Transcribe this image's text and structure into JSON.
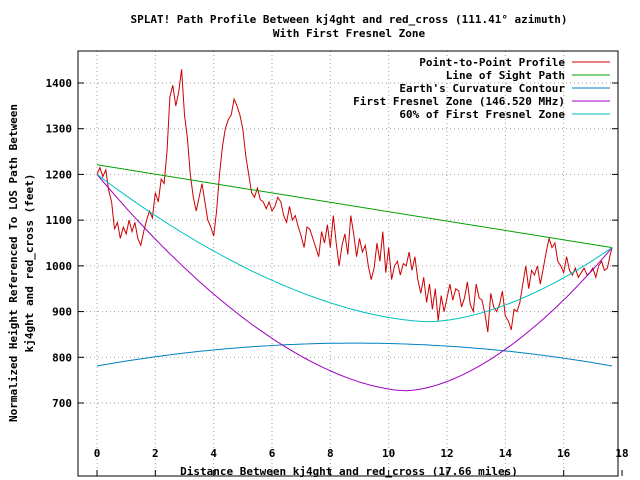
{
  "chart_data": {
    "type": "line",
    "title_line1": "SPLAT! Path Profile Between kj4ght and red_cross (111.41° azimuth)",
    "title_line2": "With First Fresnel Zone",
    "xlabel": "Distance Between kj4ght and red_cross (17.66 miles)",
    "ylabel_line1": "Normalized Height Referenced To LOS Path Between",
    "ylabel_line2": "kj4ght and red_cross (feet)",
    "xlim": [
      -1,
      18
    ],
    "ylim": [
      620,
      1480
    ],
    "x_ticks": [
      0,
      2,
      4,
      6,
      8,
      10,
      12,
      14,
      16,
      18
    ],
    "y_ticks": [
      700,
      800,
      900,
      1000,
      1100,
      1200,
      1300,
      1400
    ],
    "grid": true,
    "legend_position": "top-right",
    "series": [
      {
        "name": "Point-to-Point Profile",
        "color": "#cc0000",
        "points": [
          [
            0.0,
            1200
          ],
          [
            0.1,
            1215
          ],
          [
            0.2,
            1195
          ],
          [
            0.3,
            1210
          ],
          [
            0.4,
            1165
          ],
          [
            0.5,
            1140
          ],
          [
            0.6,
            1080
          ],
          [
            0.7,
            1095
          ],
          [
            0.8,
            1060
          ],
          [
            0.9,
            1085
          ],
          [
            1.0,
            1070
          ],
          [
            1.1,
            1100
          ],
          [
            1.2,
            1075
          ],
          [
            1.3,
            1095
          ],
          [
            1.4,
            1060
          ],
          [
            1.5,
            1045
          ],
          [
            1.6,
            1075
          ],
          [
            1.7,
            1100
          ],
          [
            1.8,
            1120
          ],
          [
            1.9,
            1105
          ],
          [
            2.0,
            1160
          ],
          [
            2.1,
            1140
          ],
          [
            2.2,
            1190
          ],
          [
            2.3,
            1180
          ],
          [
            2.4,
            1250
          ],
          [
            2.5,
            1370
          ],
          [
            2.6,
            1395
          ],
          [
            2.7,
            1350
          ],
          [
            2.8,
            1380
          ],
          [
            2.9,
            1430
          ],
          [
            3.0,
            1330
          ],
          [
            3.1,
            1280
          ],
          [
            3.2,
            1200
          ],
          [
            3.3,
            1150
          ],
          [
            3.4,
            1120
          ],
          [
            3.5,
            1150
          ],
          [
            3.6,
            1180
          ],
          [
            3.7,
            1140
          ],
          [
            3.8,
            1100
          ],
          [
            3.9,
            1085
          ],
          [
            4.0,
            1065
          ],
          [
            4.1,
            1120
          ],
          [
            4.2,
            1200
          ],
          [
            4.3,
            1260
          ],
          [
            4.4,
            1300
          ],
          [
            4.5,
            1320
          ],
          [
            4.6,
            1330
          ],
          [
            4.7,
            1365
          ],
          [
            4.8,
            1350
          ],
          [
            4.9,
            1330
          ],
          [
            5.0,
            1300
          ],
          [
            5.1,
            1240
          ],
          [
            5.2,
            1200
          ],
          [
            5.3,
            1160
          ],
          [
            5.4,
            1150
          ],
          [
            5.5,
            1170
          ],
          [
            5.6,
            1145
          ],
          [
            5.7,
            1140
          ],
          [
            5.8,
            1125
          ],
          [
            5.9,
            1140
          ],
          [
            6.0,
            1120
          ],
          [
            6.1,
            1130
          ],
          [
            6.2,
            1150
          ],
          [
            6.3,
            1140
          ],
          [
            6.4,
            1110
          ],
          [
            6.5,
            1095
          ],
          [
            6.6,
            1130
          ],
          [
            6.7,
            1100
          ],
          [
            6.8,
            1110
          ],
          [
            6.9,
            1085
          ],
          [
            7.0,
            1065
          ],
          [
            7.1,
            1040
          ],
          [
            7.2,
            1085
          ],
          [
            7.3,
            1080
          ],
          [
            7.4,
            1060
          ],
          [
            7.5,
            1040
          ],
          [
            7.6,
            1020
          ],
          [
            7.7,
            1075
          ],
          [
            7.8,
            1050
          ],
          [
            7.9,
            1090
          ],
          [
            8.0,
            1040
          ],
          [
            8.1,
            1110
          ],
          [
            8.2,
            1050
          ],
          [
            8.3,
            1000
          ],
          [
            8.4,
            1045
          ],
          [
            8.5,
            1070
          ],
          [
            8.6,
            1025
          ],
          [
            8.7,
            1110
          ],
          [
            8.8,
            1070
          ],
          [
            8.9,
            1020
          ],
          [
            9.0,
            1060
          ],
          [
            9.1,
            1030
          ],
          [
            9.2,
            1045
          ],
          [
            9.3,
            1000
          ],
          [
            9.4,
            970
          ],
          [
            9.5,
            995
          ],
          [
            9.6,
            1050
          ],
          [
            9.7,
            1010
          ],
          [
            9.8,
            1075
          ],
          [
            9.9,
            985
          ],
          [
            10.0,
            1040
          ],
          [
            10.1,
            970
          ],
          [
            10.2,
            1000
          ],
          [
            10.3,
            1010
          ],
          [
            10.4,
            980
          ],
          [
            10.5,
            1005
          ],
          [
            10.6,
            1000
          ],
          [
            10.7,
            1030
          ],
          [
            10.8,
            990
          ],
          [
            10.9,
            1020
          ],
          [
            11.0,
            970
          ],
          [
            11.1,
            940
          ],
          [
            11.2,
            975
          ],
          [
            11.3,
            920
          ],
          [
            11.4,
            960
          ],
          [
            11.5,
            905
          ],
          [
            11.6,
            950
          ],
          [
            11.7,
            880
          ],
          [
            11.8,
            935
          ],
          [
            11.9,
            900
          ],
          [
            12.0,
            930
          ],
          [
            12.1,
            960
          ],
          [
            12.2,
            925
          ],
          [
            12.3,
            950
          ],
          [
            12.4,
            945
          ],
          [
            12.5,
            910
          ],
          [
            12.6,
            930
          ],
          [
            12.7,
            965
          ],
          [
            12.8,
            915
          ],
          [
            12.9,
            900
          ],
          [
            13.0,
            960
          ],
          [
            13.1,
            930
          ],
          [
            13.2,
            925
          ],
          [
            13.3,
            895
          ],
          [
            13.4,
            855
          ],
          [
            13.5,
            940
          ],
          [
            13.6,
            910
          ],
          [
            13.7,
            900
          ],
          [
            13.8,
            915
          ],
          [
            13.9,
            945
          ],
          [
            14.0,
            890
          ],
          [
            14.1,
            880
          ],
          [
            14.2,
            860
          ],
          [
            14.3,
            905
          ],
          [
            14.4,
            900
          ],
          [
            14.5,
            920
          ],
          [
            14.6,
            960
          ],
          [
            14.7,
            1000
          ],
          [
            14.8,
            950
          ],
          [
            14.9,
            990
          ],
          [
            15.0,
            980
          ],
          [
            15.1,
            1000
          ],
          [
            15.2,
            960
          ],
          [
            15.3,
            995
          ],
          [
            15.4,
            1030
          ],
          [
            15.5,
            1060
          ],
          [
            15.6,
            1040
          ],
          [
            15.7,
            1050
          ],
          [
            15.8,
            1010
          ],
          [
            15.9,
            1000
          ],
          [
            16.0,
            985
          ],
          [
            16.1,
            1020
          ],
          [
            16.2,
            990
          ],
          [
            16.3,
            980
          ],
          [
            16.4,
            995
          ],
          [
            16.5,
            975
          ],
          [
            16.6,
            985
          ],
          [
            16.7,
            995
          ],
          [
            16.8,
            980
          ],
          [
            16.9,
            985
          ],
          [
            17.0,
            995
          ],
          [
            17.1,
            975
          ],
          [
            17.2,
            1000
          ],
          [
            17.3,
            1010
          ],
          [
            17.4,
            990
          ],
          [
            17.5,
            995
          ],
          [
            17.6,
            1025
          ],
          [
            17.66,
            1040
          ]
        ]
      },
      {
        "name": "Line of Sight Path",
        "color": "#00a000",
        "points": [
          [
            0,
            1221
          ],
          [
            17.66,
            1040
          ]
        ]
      },
      {
        "name": "Earth's Curvature Contour",
        "color": "#0080c0",
        "function": "curvature",
        "start": 781,
        "mid": 831,
        "end": 781
      },
      {
        "name": "First Fresnel Zone (146.520 MHz)",
        "color": "#a000c0",
        "function": "fresnel",
        "start": 1200,
        "min": 727,
        "end": 1040,
        "min_x": 10.6
      },
      {
        "name": "60% of First Fresnel Zone",
        "color": "#00c0c0",
        "function": "fresnel",
        "start": 1200,
        "min": 878,
        "end": 1040,
        "min_x": 11.4
      }
    ]
  }
}
